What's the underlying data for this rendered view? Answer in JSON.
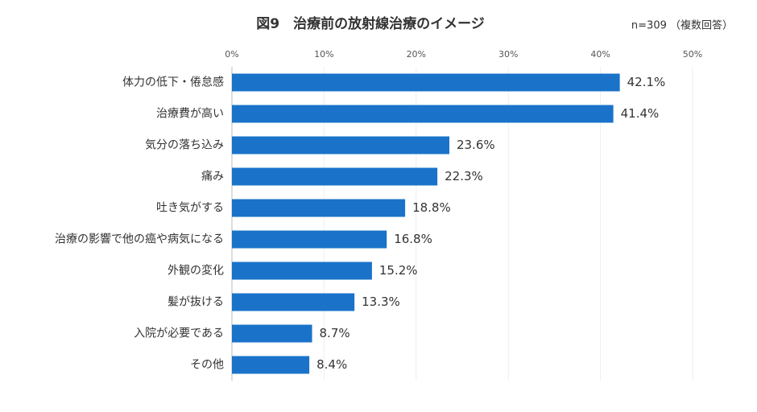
{
  "chart_data": {
    "type": "bar",
    "orientation": "horizontal",
    "title": "図9　治療前の放射線治療のイメージ",
    "subtitle": "n=309 （複数回答）",
    "categories": [
      "体力の低下・倦怠感",
      "治療費が高い",
      "気分の落ち込み",
      "痛み",
      "吐き気がする",
      "治療の影響で他の癌や病気になる",
      "外観の変化",
      "髪が抜ける",
      "入院が必要である",
      "その他"
    ],
    "values": [
      42.1,
      41.4,
      23.6,
      22.3,
      18.8,
      16.8,
      15.2,
      13.3,
      8.7,
      8.4
    ],
    "value_labels": [
      "42.1%",
      "41.4%",
      "23.6%",
      "22.3%",
      "18.8%",
      "16.8%",
      "15.2%",
      "13.3%",
      "8.7%",
      "8.4%"
    ],
    "color": "#1a73c9",
    "xlim": [
      0,
      50
    ],
    "xticks": [
      {
        "value": 0,
        "label": "0%"
      },
      {
        "value": 10,
        "label": "10%"
      },
      {
        "value": 20,
        "label": "20%"
      },
      {
        "value": 30,
        "label": "30%"
      },
      {
        "value": 40,
        "label": "40%"
      },
      {
        "value": 50,
        "label": "50%"
      }
    ],
    "grid": true
  }
}
